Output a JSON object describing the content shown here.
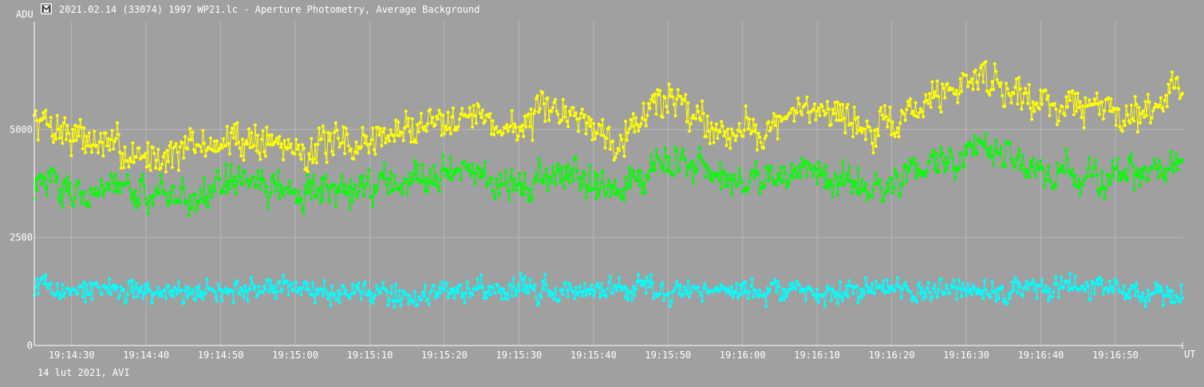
{
  "window": {
    "icon": "app-logo-icon",
    "title": "2021.02.14 (33074) 1997 WP21.lc - Aperture Photometry, Average Background"
  },
  "footer_note": "14 lut 2021, AVI",
  "colors": {
    "background": "#a0a0a0",
    "grid": "#b8b8b8",
    "axis": "#ffffff",
    "text": "#ffffff",
    "series_yellow": "#ffff00",
    "series_green": "#00ff00",
    "series_cyan": "#00ffff"
  },
  "chart_data": {
    "type": "line",
    "title": "",
    "xlabel": "UT",
    "ylabel": "ADU",
    "ylim": [
      0,
      7500
    ],
    "yticks": [
      0,
      2500,
      5000
    ],
    "ytick_labels": [
      "0",
      "2500",
      "5000"
    ],
    "xlim": [
      "19:14:25",
      "19:16:59"
    ],
    "xticks": [
      "19:14:30",
      "19:14:40",
      "19:14:50",
      "19:15:00",
      "19:15:10",
      "19:15:20",
      "19:15:30",
      "19:15:40",
      "19:15:50",
      "19:16:00",
      "19:16:10",
      "19:16:20",
      "19:16:30",
      "19:16:40",
      "19:16:50"
    ],
    "grid": true,
    "legend": "none",
    "markers": "dots",
    "series": [
      {
        "color": "#ffff00",
        "times": [
          "19:14:26",
          "19:14:33",
          "19:14:40",
          "19:14:47",
          "19:14:54",
          "19:15:01",
          "19:15:08",
          "19:15:15",
          "19:15:22",
          "19:15:29",
          "19:15:36",
          "19:15:43",
          "19:15:50",
          "19:15:57",
          "19:16:04",
          "19:16:11",
          "19:16:18",
          "19:16:25",
          "19:16:32",
          "19:16:39",
          "19:16:46",
          "19:16:53",
          "19:16:59"
        ],
        "values": [
          5200,
          4700,
          4350,
          4600,
          4800,
          4550,
          4650,
          5000,
          5450,
          5000,
          5500,
          4800,
          5800,
          5000,
          5050,
          5600,
          4850,
          5700,
          6300,
          5650,
          5550,
          5400,
          6000
        ]
      },
      {
        "color": "#00ff00",
        "times": [
          "19:14:26",
          "19:14:33",
          "19:14:40",
          "19:14:47",
          "19:14:54",
          "19:15:01",
          "19:15:08",
          "19:15:15",
          "19:15:22",
          "19:15:29",
          "19:15:36",
          "19:15:43",
          "19:15:50",
          "19:15:57",
          "19:16:04",
          "19:16:11",
          "19:16:18",
          "19:16:25",
          "19:16:32",
          "19:16:39",
          "19:16:46",
          "19:16:53",
          "19:16:59"
        ],
        "values": [
          3700,
          3650,
          3450,
          3550,
          3800,
          3500,
          3600,
          3900,
          4100,
          3700,
          4050,
          3650,
          4300,
          3800,
          3850,
          3950,
          3600,
          4200,
          4550,
          4100,
          3950,
          3850,
          4200
        ]
      },
      {
        "color": "#00ffff",
        "times": [
          "19:14:26",
          "19:14:33",
          "19:14:40",
          "19:14:47",
          "19:14:54",
          "19:15:01",
          "19:15:08",
          "19:15:15",
          "19:15:22",
          "19:15:29",
          "19:15:36",
          "19:15:43",
          "19:15:50",
          "19:15:57",
          "19:16:04",
          "19:16:11",
          "19:16:18",
          "19:16:25",
          "19:16:32",
          "19:16:39",
          "19:16:46",
          "19:16:53",
          "19:16:59"
        ],
        "values": [
          1300,
          1250,
          1300,
          1250,
          1250,
          1300,
          1250,
          1200,
          1300,
          1350,
          1250,
          1300,
          1250,
          1300,
          1250,
          1250,
          1300,
          1300,
          1250,
          1300,
          1300,
          1250,
          1250
        ]
      }
    ]
  }
}
